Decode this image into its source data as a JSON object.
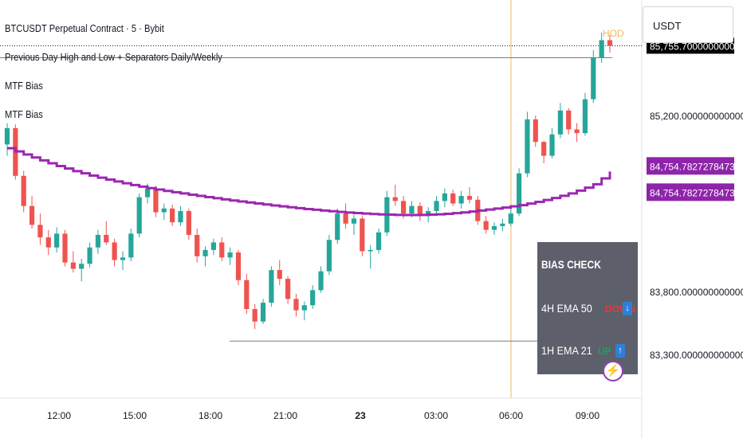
{
  "legend": {
    "title": "BTCUSDT Perpetual Contract · 5 · Bybit",
    "indicator_1": "Previous Day High and Low + Separators Daily/Weekly",
    "indicator_2": "MTF Bias",
    "indicator_3": "MTF Bias"
  },
  "currency": "USDT",
  "bias_check": {
    "title": "BIAS CHECK",
    "rows": [
      {
        "label": "4H EMA 50",
        "status": "DOWN",
        "status_color": "#e23b3b",
        "arrow_icon": "arrow-down-icon"
      },
      {
        "label": "1H EMA 21",
        "status": "UP",
        "status_color": "#1aa260",
        "arrow_icon": "arrow-up-icon"
      }
    ]
  },
  "hod_label": "HOD",
  "colors": {
    "up_candle": "#26a69a",
    "down_candle": "#ef5350",
    "ema_line": "#9c27b0",
    "session_line": "#f0b860",
    "price_tag_bg": "#000000",
    "ema_tag_bg": "#8e24aa"
  },
  "chart_data": {
    "type": "candlestick",
    "x_tick_labels": [
      "12:00",
      "15:00",
      "18:00",
      "21:00",
      "23",
      "03:00",
      "06:00",
      "09:00"
    ],
    "y_tick_labels": [
      "85,200.0000000000000",
      "83,800.0000000000000",
      "83,300.0000000000000"
    ],
    "y_ticks": [
      85200,
      83800,
      83300
    ],
    "ylim": [
      82950,
      86120
    ],
    "current_price": {
      "label": "85,755.7000000000000",
      "value": 85755.7
    },
    "ema_tags": [
      {
        "label": "84,754.7827278473216",
        "value": 84754.78
      },
      {
        "label": "84,754.7827278473216",
        "value": 84754.78
      }
    ],
    "previous_day_high": 85660,
    "previous_day_low": 83405,
    "hod_value": 85860,
    "candles": [
      [
        84970,
        85140,
        84880,
        85100
      ],
      [
        85100,
        85130,
        84690,
        84720
      ],
      [
        84720,
        84760,
        84430,
        84480
      ],
      [
        84480,
        84560,
        84300,
        84330
      ],
      [
        84330,
        84420,
        84170,
        84230
      ],
      [
        84230,
        84290,
        84090,
        84150
      ],
      [
        84150,
        84310,
        84110,
        84260
      ],
      [
        84260,
        84290,
        84000,
        84030
      ],
      [
        84030,
        84120,
        83950,
        83980
      ],
      [
        83980,
        84060,
        83880,
        84020
      ],
      [
        84020,
        84190,
        83990,
        84150
      ],
      [
        84150,
        84290,
        84100,
        84250
      ],
      [
        84250,
        84360,
        84170,
        84190
      ],
      [
        84190,
        84220,
        84000,
        84050
      ],
      [
        84050,
        84120,
        83970,
        84070
      ],
      [
        84070,
        84300,
        84040,
        84260
      ],
      [
        84260,
        84580,
        84230,
        84550
      ],
      [
        84550,
        84660,
        84500,
        84620
      ],
      [
        84620,
        84640,
        84390,
        84430
      ],
      [
        84430,
        84500,
        84370,
        84460
      ],
      [
        84460,
        84490,
        84320,
        84350
      ],
      [
        84350,
        84480,
        84320,
        84440
      ],
      [
        84440,
        84460,
        84210,
        84250
      ],
      [
        84250,
        84300,
        84030,
        84080
      ],
      [
        84080,
        84160,
        84000,
        84130
      ],
      [
        84130,
        84220,
        84090,
        84190
      ],
      [
        84190,
        84230,
        84040,
        84070
      ],
      [
        84070,
        84150,
        84010,
        84110
      ],
      [
        84110,
        84130,
        83850,
        83890
      ],
      [
        83890,
        83940,
        83620,
        83660
      ],
      [
        83660,
        83700,
        83500,
        83560
      ],
      [
        83560,
        83740,
        83540,
        83710
      ],
      [
        83710,
        84000,
        83680,
        83970
      ],
      [
        83970,
        84050,
        83850,
        83900
      ],
      [
        83900,
        83920,
        83700,
        83740
      ],
      [
        83740,
        83780,
        83600,
        83650
      ],
      [
        83650,
        83720,
        83570,
        83690
      ],
      [
        83690,
        83850,
        83660,
        83810
      ],
      [
        83810,
        84000,
        83790,
        83960
      ],
      [
        83960,
        84250,
        83930,
        84210
      ],
      [
        84210,
        84460,
        84180,
        84420
      ],
      [
        84420,
        84500,
        84300,
        84340
      ],
      [
        84340,
        84410,
        84250,
        84380
      ],
      [
        84380,
        84400,
        84080,
        84120
      ],
      [
        84120,
        84170,
        83980,
        84130
      ],
      [
        84130,
        84300,
        84100,
        84270
      ],
      [
        84270,
        84600,
        84240,
        84550
      ],
      [
        84550,
        84650,
        84480,
        84520
      ],
      [
        84520,
        84560,
        84380,
        84420
      ],
      [
        84420,
        84520,
        84390,
        84480
      ],
      [
        84480,
        84510,
        84360,
        84400
      ],
      [
        84400,
        84470,
        84350,
        84440
      ],
      [
        84440,
        84560,
        84410,
        84520
      ],
      [
        84520,
        84620,
        84470,
        84580
      ],
      [
        84580,
        84610,
        84480,
        84500
      ],
      [
        84500,
        84600,
        84460,
        84560
      ],
      [
        84560,
        84630,
        84500,
        84530
      ],
      [
        84530,
        84560,
        84330,
        84360
      ],
      [
        84360,
        84400,
        84260,
        84290
      ],
      [
        84290,
        84350,
        84250,
        84320
      ],
      [
        84320,
        84380,
        84280,
        84340
      ],
      [
        84340,
        84460,
        84320,
        84420
      ],
      [
        84420,
        84780,
        84400,
        84740
      ],
      [
        84740,
        85230,
        84710,
        85170
      ],
      [
        85170,
        85200,
        84950,
        84990
      ],
      [
        84990,
        85000,
        84820,
        84880
      ],
      [
        84880,
        85100,
        84860,
        85050
      ],
      [
        85050,
        85300,
        85020,
        85240
      ],
      [
        85240,
        85260,
        85050,
        85090
      ],
      [
        85090,
        85140,
        84990,
        85060
      ],
      [
        85060,
        85380,
        85040,
        85330
      ],
      [
        85330,
        85720,
        85300,
        85660
      ],
      [
        85660,
        85860,
        85620,
        85800
      ],
      [
        85800,
        85840,
        85700,
        85755.7
      ]
    ],
    "ema": [
      84940,
      84915,
      84890,
      84866,
      84843,
      84820,
      84798,
      84778,
      84758,
      84740,
      84722,
      84705,
      84690,
      84675,
      84661,
      84647,
      84634,
      84622,
      84611,
      84600,
      84590,
      84580,
      84570,
      84560,
      84551,
      84542,
      84533,
      84524,
      84516,
      84508,
      84500,
      84492,
      84484,
      84477,
      84470,
      84463,
      84456,
      84450,
      84444,
      84438,
      84433,
      84428,
      84424,
      84420,
      84416,
      84413,
      84411,
      84409,
      84408,
      84408,
      84409,
      84411,
      84414,
      84418,
      84423,
      84429,
      84436,
      84444,
      84452,
      84460,
      84468,
      84477,
      84487,
      84499,
      84513,
      84528,
      84544,
      84561,
      84580,
      84602,
      84626,
      84653,
      84700,
      84754.78
    ]
  }
}
